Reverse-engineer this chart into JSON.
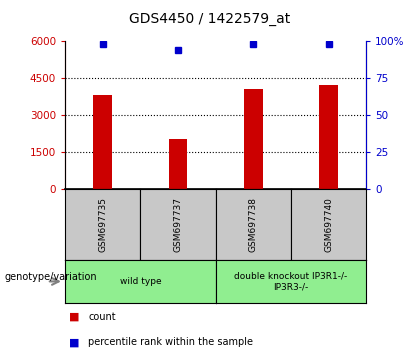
{
  "title": "GDS4450 / 1422579_at",
  "samples": [
    "GSM697735",
    "GSM697737",
    "GSM697738",
    "GSM697740"
  ],
  "bar_values": [
    3800,
    2050,
    4050,
    4200
  ],
  "percentile_values": [
    98,
    94,
    98,
    98
  ],
  "bar_color": "#cc0000",
  "percentile_color": "#0000cc",
  "ylim_left": [
    0,
    6000
  ],
  "ylim_right": [
    0,
    100
  ],
  "yticks_left": [
    0,
    1500,
    3000,
    4500,
    6000
  ],
  "yticks_right": [
    0,
    25,
    50,
    75,
    100
  ],
  "ytick_labels_left": [
    "0",
    "1500",
    "3000",
    "4500",
    "6000"
  ],
  "ytick_labels_right": [
    "0",
    "25",
    "50",
    "75",
    "100%"
  ],
  "groups": [
    {
      "label": "wild type",
      "col_span": 2,
      "color": "#90ee90"
    },
    {
      "label": "double knockout IP3R1-/-\nIP3R3-/-",
      "col_span": 2,
      "color": "#90ee90"
    }
  ],
  "group_label": "genotype/variation",
  "legend_items": [
    {
      "color": "#cc0000",
      "label": "count"
    },
    {
      "color": "#0000cc",
      "label": "percentile rank within the sample"
    }
  ],
  "sample_bg_color": "#c8c8c8",
  "plot_bg_color": "#ffffff",
  "bar_width": 0.25,
  "x_positions": [
    0.5,
    1.5,
    2.5,
    3.5
  ],
  "xlim": [
    0,
    4
  ]
}
